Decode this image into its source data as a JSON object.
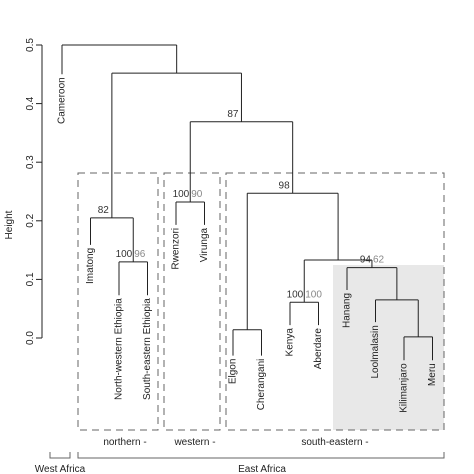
{
  "chart_data": {
    "type": "dendrogram",
    "ylabel": "Height",
    "ylim": [
      0,
      0.5
    ],
    "yticks": [
      {
        "value": 0,
        "label": "0.0"
      },
      {
        "value": 0.1,
        "label": "0.1"
      },
      {
        "value": 0.2,
        "label": "0.2"
      },
      {
        "value": 0.3,
        "label": "0.3"
      },
      {
        "value": 0.4,
        "label": "0.4"
      },
      {
        "value": 0.5,
        "label": "0.5"
      }
    ],
    "support_colors": [
      "#333333",
      "#888888"
    ],
    "tree": {
      "height": 0.5,
      "children": [
        {
          "label": "Cameroon",
          "height": 0.45
        },
        {
          "height": 0.452,
          "children": [
            {
              "height": 0.205,
              "support": [
                82
              ],
              "children": [
                {
                  "label": "Imatong",
                  "height": 0.159
                },
                {
                  "height": 0.13,
                  "support": [
                    100,
                    96
                  ],
                  "children": [
                    {
                      "label": "North-western Ethiopia",
                      "height": 0.073
                    },
                    {
                      "label": "South-eastern Ethiopia",
                      "height": 0.073
                    }
                  ]
                }
              ]
            },
            {
              "height": 0.369,
              "support": [
                87
              ],
              "children": [
                {
                  "height": 0.232,
                  "support": [
                    100,
                    90
                  ],
                  "children": [
                    {
                      "label": "Rwenzori",
                      "height": 0.193
                    },
                    {
                      "label": "Virunga",
                      "height": 0.193
                    }
                  ]
                },
                {
                  "height": 0.247,
                  "support": [
                    98
                  ],
                  "children": [
                    {
                      "height": 0.014,
                      "children": [
                        {
                          "label": "Elgon",
                          "height": -0.03
                        },
                        {
                          "label": "Cherangani",
                          "height": -0.03
                        }
                      ]
                    },
                    {
                      "height": 0.133,
                      "children": [
                        {
                          "height": 0.061,
                          "support": [
                            100,
                            100
                          ],
                          "children": [
                            {
                              "label": "Kenya",
                              "height": 0.022
                            },
                            {
                              "label": "Aberdare",
                              "height": 0.022
                            }
                          ]
                        },
                        {
                          "height": 0.12,
                          "support": [
                            94,
                            62
                          ],
                          "children": [
                            {
                              "label": "Hanang",
                              "height": 0.082
                            },
                            {
                              "height": 0.065,
                              "children": [
                                {
                                  "label": "Loolmalasin",
                                  "height": 0.027
                                },
                                {
                                  "height": 0.002,
                                  "children": [
                                    {
                                      "label": "Kilimanjaro",
                                      "height": -0.038
                                    },
                                    {
                                      "label": "Meru",
                                      "height": -0.038
                                    }
                                  ]
                                }
                              ]
                            }
                          ]
                        }
                      ]
                    }
                  ]
                }
              ]
            }
          ]
        }
      ]
    },
    "groups": [
      "northern -",
      "western -",
      "south-eastern -"
    ],
    "regions": [
      "West Africa",
      "East Africa"
    ]
  }
}
